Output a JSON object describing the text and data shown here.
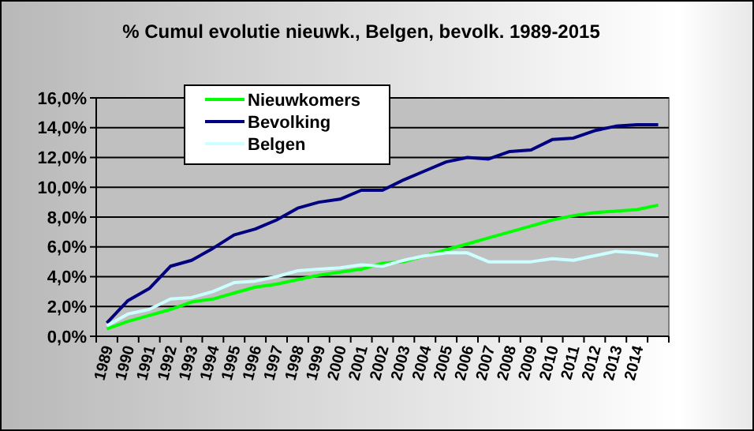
{
  "chart_data": {
    "type": "line",
    "title": "% Cumul evolutie nieuwk., Belgen, bevolk.  1989-2015",
    "categories": [
      "1989",
      "1990",
      "1991",
      "1992",
      "1993",
      "1994",
      "1995",
      "1996",
      "1997",
      "1998",
      "1999",
      "2000",
      "2001",
      "2002",
      "2003",
      "2004",
      "2005",
      "2006",
      "2007",
      "2008",
      "2009",
      "2010",
      "2011",
      "2012",
      "2013",
      "2014",
      null
    ],
    "series": [
      {
        "name": "Nieuwkomers",
        "color": "#00ff00",
        "values": [
          0.5,
          1.0,
          1.4,
          1.8,
          2.3,
          2.5,
          2.9,
          3.3,
          3.5,
          3.8,
          4.1,
          4.3,
          4.5,
          4.9,
          5.0,
          5.4,
          5.8,
          6.2,
          6.6,
          7.0,
          7.4,
          7.8,
          8.1,
          8.3,
          8.4,
          8.5,
          8.8
        ]
      },
      {
        "name": "Bevolking",
        "color": "#000080",
        "values": [
          0.9,
          2.4,
          3.2,
          4.7,
          5.1,
          5.9,
          6.8,
          7.2,
          7.8,
          8.6,
          9.0,
          9.2,
          9.8,
          9.8,
          10.5,
          11.1,
          11.7,
          12.0,
          11.9,
          12.4,
          12.5,
          13.2,
          13.3,
          13.8,
          14.1,
          14.2,
          14.2
        ]
      },
      {
        "name": "Belgen",
        "color": "#ccffff",
        "values": [
          0.7,
          1.5,
          1.8,
          2.5,
          2.6,
          3.0,
          3.6,
          3.7,
          4.0,
          4.4,
          4.5,
          4.6,
          4.8,
          4.7,
          5.1,
          5.4,
          5.6,
          5.6,
          5.0,
          5.0,
          5.0,
          5.2,
          5.1,
          5.4,
          5.7,
          5.6,
          5.4
        ]
      }
    ],
    "ylim": [
      0,
      16
    ],
    "yticks": [
      {
        "value": 0,
        "label": "0,0%"
      },
      {
        "value": 2,
        "label": "2,0%"
      },
      {
        "value": 4,
        "label": "4,0%"
      },
      {
        "value": 6,
        "label": "6,0%"
      },
      {
        "value": 8,
        "label": "8,0%"
      },
      {
        "value": 10,
        "label": "10,0%"
      },
      {
        "value": 12,
        "label": "12,0%"
      },
      {
        "value": 14,
        "label": "14,0%"
      },
      {
        "value": 16,
        "label": "16,0%"
      }
    ],
    "grid": "y",
    "legend": "top",
    "marker": "none",
    "line_style": "solid"
  }
}
